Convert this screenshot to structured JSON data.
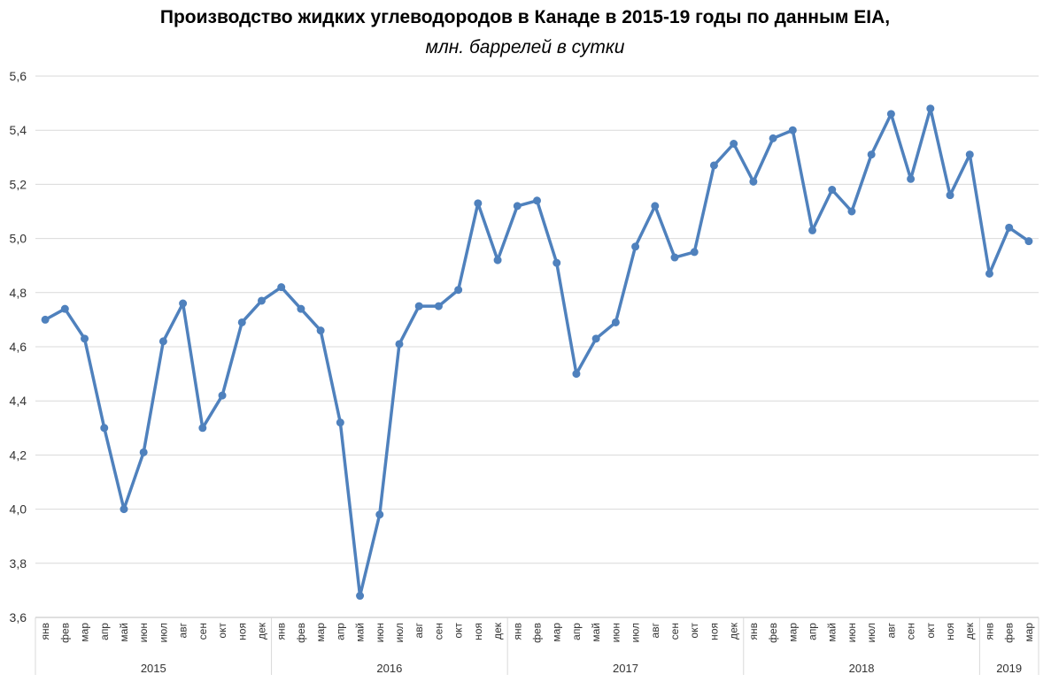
{
  "chart_data": {
    "type": "line",
    "title": "Производство жидких углеводородов в Канаде в 2015-19 годы по данным EIA,",
    "subtitle": "млн. баррелей в сутки",
    "ylim": [
      3.6,
      5.6
    ],
    "yticks": [
      "3,6",
      "3,8",
      "4,0",
      "4,2",
      "4,4",
      "4,6",
      "4,8",
      "5,0",
      "5,2",
      "5,4",
      "5,6"
    ],
    "ytick_values": [
      3.6,
      3.8,
      4.0,
      4.2,
      4.4,
      4.6,
      4.8,
      5.0,
      5.2,
      5.4,
      5.6
    ],
    "grid": true,
    "color": "#4F81BD",
    "years": [
      {
        "label": "2015",
        "months": [
          "янв",
          "фев",
          "мар",
          "апр",
          "май",
          "июн",
          "июл",
          "авг",
          "сен",
          "окт",
          "ноя",
          "дек"
        ]
      },
      {
        "label": "2016",
        "months": [
          "янв",
          "фев",
          "мар",
          "апр",
          "май",
          "июн",
          "июл",
          "авг",
          "сен",
          "окт",
          "ноя",
          "дек"
        ]
      },
      {
        "label": "2017",
        "months": [
          "янв",
          "фев",
          "мар",
          "апр",
          "май",
          "июн",
          "июл",
          "авг",
          "сен",
          "окт",
          "ноя",
          "дек"
        ]
      },
      {
        "label": "2018",
        "months": [
          "янв",
          "фев",
          "мар",
          "апр",
          "май",
          "июн",
          "июл",
          "авг",
          "сен",
          "окт",
          "ноя",
          "дек"
        ]
      },
      {
        "label": "2019",
        "months": [
          "янв",
          "фев",
          "мар"
        ]
      }
    ],
    "series": [
      {
        "values": [
          4.7,
          4.74,
          4.63,
          4.3,
          4.0,
          4.21,
          4.62,
          4.76,
          4.3,
          4.42,
          4.69,
          4.77,
          4.82,
          4.74,
          4.66,
          4.32,
          3.68,
          3.98,
          4.61,
          4.75,
          4.75,
          4.81,
          5.13,
          4.92,
          5.12,
          5.14,
          4.91,
          4.5,
          4.63,
          4.69,
          4.97,
          5.12,
          4.93,
          4.95,
          5.27,
          5.35,
          5.21,
          5.37,
          5.4,
          5.03,
          5.18,
          5.1,
          5.31,
          5.46,
          5.22,
          5.48,
          5.16,
          5.31,
          4.87,
          5.04,
          4.99
        ]
      }
    ]
  }
}
